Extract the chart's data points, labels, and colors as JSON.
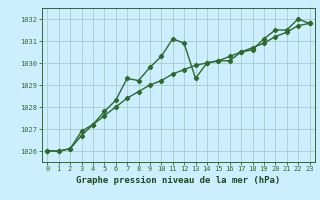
{
  "line1_x": [
    0,
    1,
    2,
    3,
    4,
    5,
    6,
    7,
    8,
    9,
    10,
    11,
    12,
    13,
    14,
    15,
    16,
    17,
    18,
    19,
    20,
    21,
    22,
    23
  ],
  "line1_y": [
    1026.0,
    1026.0,
    1026.1,
    1026.9,
    1027.2,
    1027.8,
    1028.3,
    1029.3,
    1029.2,
    1029.8,
    1030.3,
    1031.1,
    1030.9,
    1029.3,
    1030.0,
    1030.1,
    1030.1,
    1030.5,
    1030.6,
    1031.1,
    1031.5,
    1031.5,
    1032.0,
    1031.8
  ],
  "line2_x": [
    0,
    1,
    2,
    3,
    4,
    5,
    6,
    7,
    8,
    9,
    10,
    11,
    12,
    13,
    14,
    15,
    16,
    17,
    18,
    19,
    20,
    21,
    22,
    23
  ],
  "line2_y": [
    1026.0,
    1026.0,
    1026.1,
    1026.7,
    1027.2,
    1027.6,
    1028.0,
    1028.4,
    1028.7,
    1029.0,
    1029.2,
    1029.5,
    1029.7,
    1029.9,
    1030.0,
    1030.1,
    1030.3,
    1030.5,
    1030.7,
    1030.9,
    1031.2,
    1031.4,
    1031.7,
    1031.8
  ],
  "line_color": "#2d6a2d",
  "bg_color": "#cceeff",
  "grid_color": "#aacccc",
  "xlabel": "Graphe pression niveau de la mer (hPa)",
  "xlabel_color": "#1a4a1a",
  "ylim": [
    1025.5,
    1032.5
  ],
  "xlim": [
    -0.5,
    23.5
  ],
  "yticks": [
    1026,
    1027,
    1028,
    1029,
    1030,
    1031,
    1032
  ],
  "xticks": [
    0,
    1,
    2,
    3,
    4,
    5,
    6,
    7,
    8,
    9,
    10,
    11,
    12,
    13,
    14,
    15,
    16,
    17,
    18,
    19,
    20,
    21,
    22,
    23
  ],
  "marker": "D",
  "markersize": 2.2,
  "linewidth": 1.0,
  "tick_fontsize": 5.0,
  "xlabel_fontsize": 6.5
}
